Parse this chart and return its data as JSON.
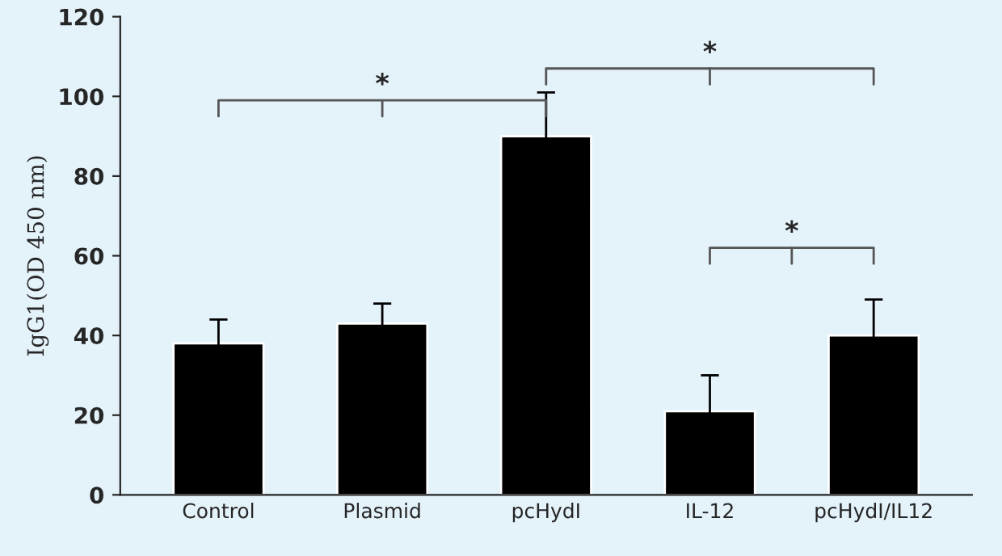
{
  "chart_data": {
    "type": "bar",
    "ylabel": "IgG1(OD 450 nm)",
    "categories": [
      "Control",
      "Plasmid",
      "pcHydI",
      "IL-12",
      "pcHydI/IL12"
    ],
    "values": [
      38,
      43,
      90,
      21,
      40
    ],
    "errors": [
      6,
      5,
      11,
      9,
      9
    ],
    "color": "#000000",
    "ylim": [
      0,
      120
    ],
    "yticks": [
      0,
      20,
      40,
      60,
      80,
      100,
      120
    ],
    "grid": false,
    "legend": false,
    "annotations": [
      "*",
      "*",
      "*"
    ]
  }
}
